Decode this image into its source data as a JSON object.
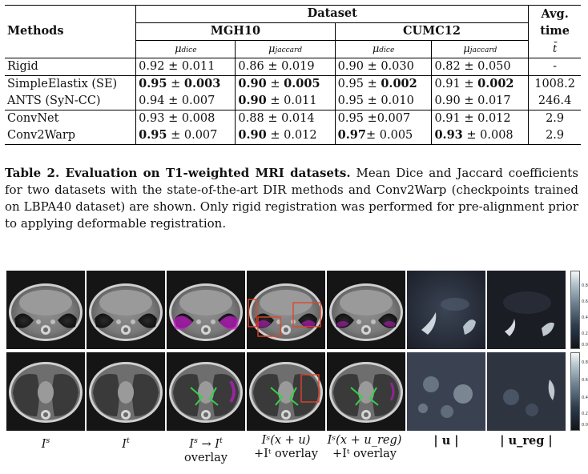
{
  "table": {
    "header_dataset": "Dataset",
    "header_methods": "Methods",
    "header_avg": "Avg.",
    "header_time": "time",
    "header_t": "t̄",
    "groups": [
      "MGH10",
      "CUMC12"
    ],
    "sub_dice": "μdice",
    "sub_jaccard": "μjaccard",
    "rows": [
      {
        "method": "Rigid",
        "m_dice": "0.92 ± 0.011",
        "m_jac": "0.86 ± 0.019",
        "c_dice": "0.90 ± 0.030",
        "c_jac": "0.82 ± 0.050",
        "time": "-"
      },
      {
        "method": "SimpleElastix (SE)",
        "m_dice": "0.95 ± 0.003",
        "m_jac": "0.90 ± 0.005",
        "c_dice": "0.95 ± 0.002",
        "c_jac": "0.91 ± 0.002",
        "time": "1008.2"
      },
      {
        "method": "ANTS (SyN-CC)",
        "m_dice": "0.94 ± 0.007",
        "m_jac": "0.90 ± 0.011",
        "c_dice": "0.95 ± 0.010",
        "c_jac": "0.90 ± 0.017",
        "time": "246.4"
      },
      {
        "method": "ConvNet",
        "m_dice": "0.93 ± 0.008",
        "m_jac": "0.88 ± 0.014",
        "c_dice": "0.95 ±0.007",
        "c_jac": "0.91 ± 0.012",
        "time": "2.9"
      },
      {
        "method": "Conv2Warp",
        "m_dice": "0.95 ± 0.007",
        "m_jac": "0.90 ± 0.012",
        "c_dice": "0.97± 0.005",
        "c_jac": "0.93 ± 0.008",
        "time": "2.9"
      }
    ]
  },
  "caption": {
    "lead": "Table 2. Evaluation on T1-weighted MRI datasets.",
    "body": " Mean Dice and Jaccard coefficients for two datasets with the state-of-the-art DIR methods and Conv2Warp (checkpoints trained on LBPA40 dataset) are shown. Only rigid registration was performed for pre-alignment prior to applying deformable registration."
  },
  "figure": {
    "colorbar_ticks": [
      "0.8",
      "0.6",
      "0.4",
      "0.2",
      "0.0"
    ],
    "labels": [
      {
        "main": "I",
        "sup": "s"
      },
      {
        "main": "I",
        "sup": "t"
      },
      {
        "main": "I",
        "sup": "s",
        "rest": " → I",
        "sup2": "t",
        "line2": "overlay"
      },
      {
        "line1": "Iˢ(x + u)",
        "line2": "+Iᵗ overlay"
      },
      {
        "line1": "Iˢ(x + u_reg)",
        "line2": "+Iᵗ overlay"
      },
      {
        "line1": "| u |"
      },
      {
        "line1": "| u_reg |"
      }
    ]
  }
}
